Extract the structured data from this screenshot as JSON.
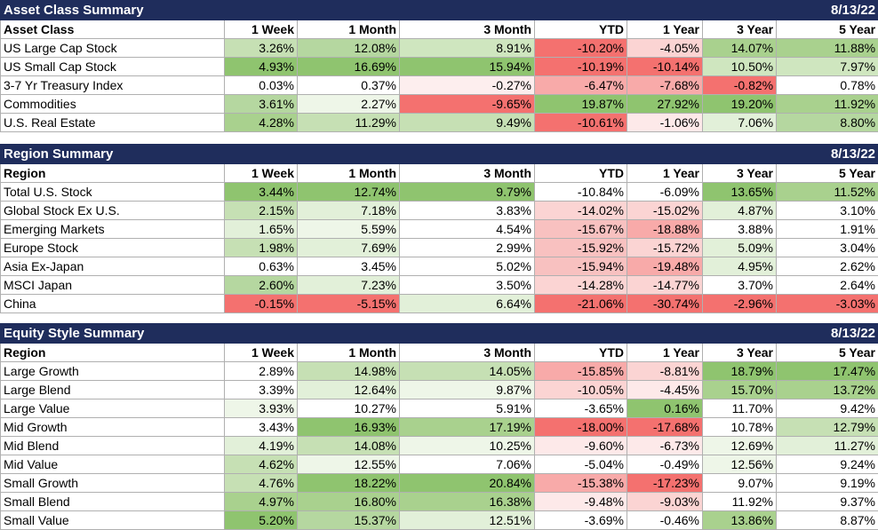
{
  "columns": [
    "1 Week",
    "1 Month",
    "3 Month",
    "YTD",
    "1 Year",
    "3 Year",
    "5 Year"
  ],
  "sections": [
    {
      "title": "Asset Class Summary",
      "date": "8/13/22",
      "first_header": "Asset Class",
      "rows": [
        {
          "name": "US Large Cap Stock",
          "values": [
            "3.26%",
            "12.08%",
            "8.91%",
            "-10.20%",
            "-4.05%",
            "14.07%",
            "11.88%"
          ],
          "colors": [
            "#c6e0b4",
            "#b5d7a0",
            "#cfe6bf",
            "#f4716f",
            "#fbd4d3",
            "#a9d18e",
            "#a9d18e"
          ]
        },
        {
          "name": "US Small Cap Stock",
          "values": [
            "4.93%",
            "16.69%",
            "15.94%",
            "-10.19%",
            "-10.14%",
            "10.50%",
            "7.97%"
          ],
          "colors": [
            "#8fc46f",
            "#8fc46f",
            "#8fc46f",
            "#f4716f",
            "#f4716f",
            "#cfe6bf",
            "#cfe6bf"
          ]
        },
        {
          "name": "3-7 Yr Treasury Index",
          "values": [
            "0.03%",
            "0.37%",
            "-0.27%",
            "-6.47%",
            "-7.68%",
            "-0.82%",
            "0.78%"
          ],
          "colors": [
            "#ffffff",
            "#ffffff",
            "#fdeeee",
            "#f8aaa9",
            "#f8aaa9",
            "#f4716f",
            "#ffffff"
          ]
        },
        {
          "name": "Commodities",
          "values": [
            "3.61%",
            "2.27%",
            "-9.65%",
            "19.87%",
            "27.92%",
            "19.20%",
            "11.92%"
          ],
          "colors": [
            "#b5d7a0",
            "#eef6e8",
            "#f4716f",
            "#8fc46f",
            "#8fc46f",
            "#8fc46f",
            "#a9d18e"
          ]
        },
        {
          "name": "U.S. Real Estate",
          "values": [
            "4.28%",
            "11.29%",
            "9.49%",
            "-10.61%",
            "-1.06%",
            "7.06%",
            "8.80%"
          ],
          "colors": [
            "#a9d18e",
            "#c6e0b4",
            "#c6e0b4",
            "#f4716f",
            "#fde9e9",
            "#e2f0d9",
            "#b5d7a0"
          ]
        }
      ]
    },
    {
      "title": "Region Summary",
      "date": "8/13/22",
      "first_header": "Region",
      "rows": [
        {
          "name": "Total U.S. Stock",
          "values": [
            "3.44%",
            "12.74%",
            "9.79%",
            "-10.84%",
            "-6.09%",
            "13.65%",
            "11.52%"
          ],
          "colors": [
            "#8fc46f",
            "#8fc46f",
            "#8fc46f",
            "#ffffff",
            "#ffffff",
            "#8fc46f",
            "#a9d18e"
          ]
        },
        {
          "name": "Global Stock Ex U.S.",
          "values": [
            "2.15%",
            "7.18%",
            "3.83%",
            "-14.02%",
            "-15.02%",
            "4.87%",
            "3.10%"
          ],
          "colors": [
            "#c6e0b4",
            "#e2f0d9",
            "#ffffff",
            "#fbd4d3",
            "#fbd4d3",
            "#e2f0d9",
            "#ffffff"
          ]
        },
        {
          "name": "Emerging Markets",
          "values": [
            "1.65%",
            "5.59%",
            "4.54%",
            "-15.67%",
            "-18.88%",
            "3.88%",
            "1.91%"
          ],
          "colors": [
            "#e2f0d9",
            "#eef6e8",
            "#ffffff",
            "#f8c1c0",
            "#f8aaa9",
            "#ffffff",
            "#ffffff"
          ]
        },
        {
          "name": "Europe Stock",
          "values": [
            "1.98%",
            "7.69%",
            "2.99%",
            "-15.92%",
            "-15.72%",
            "5.09%",
            "3.04%"
          ],
          "colors": [
            "#c6e0b4",
            "#e2f0d9",
            "#ffffff",
            "#f8c1c0",
            "#fbd4d3",
            "#e2f0d9",
            "#ffffff"
          ]
        },
        {
          "name": "Asia Ex-Japan",
          "values": [
            "0.63%",
            "3.45%",
            "5.02%",
            "-15.94%",
            "-19.48%",
            "4.95%",
            "2.62%"
          ],
          "colors": [
            "#ffffff",
            "#ffffff",
            "#ffffff",
            "#f8c1c0",
            "#f8aaa9",
            "#e2f0d9",
            "#ffffff"
          ]
        },
        {
          "name": "MSCI Japan",
          "values": [
            "2.60%",
            "7.23%",
            "3.50%",
            "-14.28%",
            "-14.77%",
            "3.70%",
            "2.64%"
          ],
          "colors": [
            "#b5d7a0",
            "#e2f0d9",
            "#ffffff",
            "#fbd4d3",
            "#fbd4d3",
            "#ffffff",
            "#ffffff"
          ]
        },
        {
          "name": "China",
          "values": [
            "-0.15%",
            "-5.15%",
            "6.64%",
            "-21.06%",
            "-30.74%",
            "-2.96%",
            "-3.03%"
          ],
          "colors": [
            "#f4716f",
            "#f4716f",
            "#e2f0d9",
            "#f4716f",
            "#f4716f",
            "#f4716f",
            "#f4716f"
          ]
        }
      ]
    },
    {
      "title": "Equity Style Summary",
      "date": "8/13/22",
      "first_header": "Region",
      "rows": [
        {
          "name": "Large Growth",
          "values": [
            "2.89%",
            "14.98%",
            "14.05%",
            "-15.85%",
            "-8.81%",
            "18.79%",
            "17.47%"
          ],
          "colors": [
            "#ffffff",
            "#c6e0b4",
            "#c6e0b4",
            "#f8aaa9",
            "#fbd4d3",
            "#8fc46f",
            "#8fc46f"
          ]
        },
        {
          "name": "Large Blend",
          "values": [
            "3.39%",
            "12.64%",
            "9.87%",
            "-10.05%",
            "-4.45%",
            "15.70%",
            "13.72%"
          ],
          "colors": [
            "#ffffff",
            "#e2f0d9",
            "#eef6e8",
            "#fbd4d3",
            "#fde9e9",
            "#a9d18e",
            "#a9d18e"
          ]
        },
        {
          "name": "Large Value",
          "values": [
            "3.93%",
            "10.27%",
            "5.91%",
            "-3.65%",
            "0.16%",
            "11.70%",
            "9.42%"
          ],
          "colors": [
            "#eef6e8",
            "#ffffff",
            "#ffffff",
            "#ffffff",
            "#8fc46f",
            "#ffffff",
            "#ffffff"
          ]
        },
        {
          "name": "Mid Growth",
          "values": [
            "3.43%",
            "16.93%",
            "17.19%",
            "-18.00%",
            "-17.68%",
            "10.78%",
            "12.79%"
          ],
          "colors": [
            "#ffffff",
            "#8fc46f",
            "#a9d18e",
            "#f4716f",
            "#f4716f",
            "#ffffff",
            "#c6e0b4"
          ]
        },
        {
          "name": "Mid Blend",
          "values": [
            "4.19%",
            "14.08%",
            "10.25%",
            "-9.60%",
            "-6.73%",
            "12.69%",
            "11.27%"
          ],
          "colors": [
            "#e2f0d9",
            "#c6e0b4",
            "#eef6e8",
            "#fde9e9",
            "#fde9e9",
            "#eef6e8",
            "#e2f0d9"
          ]
        },
        {
          "name": "Mid Value",
          "values": [
            "4.62%",
            "12.55%",
            "7.06%",
            "-5.04%",
            "-0.49%",
            "12.56%",
            "9.24%"
          ],
          "colors": [
            "#c6e0b4",
            "#eef6e8",
            "#ffffff",
            "#ffffff",
            "#ffffff",
            "#eef6e8",
            "#ffffff"
          ]
        },
        {
          "name": "Small Growth",
          "values": [
            "4.76%",
            "18.22%",
            "20.84%",
            "-15.38%",
            "-17.23%",
            "9.07%",
            "9.19%"
          ],
          "colors": [
            "#c6e0b4",
            "#8fc46f",
            "#8fc46f",
            "#f8aaa9",
            "#f4716f",
            "#ffffff",
            "#ffffff"
          ]
        },
        {
          "name": "Small Blend",
          "values": [
            "4.97%",
            "16.80%",
            "16.38%",
            "-9.48%",
            "-9.03%",
            "11.92%",
            "9.37%"
          ],
          "colors": [
            "#a9d18e",
            "#a9d18e",
            "#a9d18e",
            "#fde9e9",
            "#fbd4d3",
            "#ffffff",
            "#ffffff"
          ]
        },
        {
          "name": "Small Value",
          "values": [
            "5.20%",
            "15.37%",
            "12.51%",
            "-3.69%",
            "-0.46%",
            "13.86%",
            "8.87%"
          ],
          "colors": [
            "#8fc46f",
            "#b5d7a0",
            "#e2f0d9",
            "#ffffff",
            "#ffffff",
            "#a9d18e",
            "#ffffff"
          ]
        }
      ]
    }
  ]
}
